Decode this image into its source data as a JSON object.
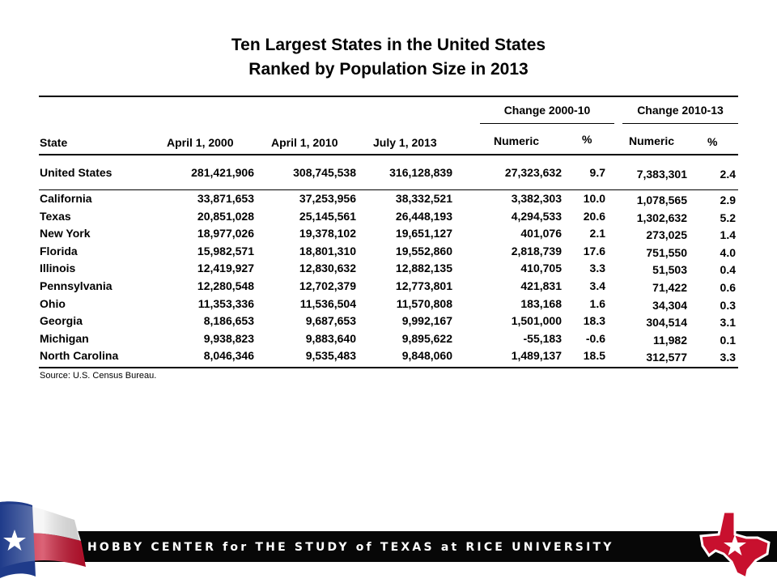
{
  "title": {
    "line1": "Ten Largest States in the United States",
    "line2": "Ranked by Population Size in 2013"
  },
  "headers": {
    "group_2000_10": "Change  2000-10",
    "group_2010_13": "Change  2010-13",
    "state": "State",
    "april_2000": "April 1,  2000",
    "april_2010": "April 1,  2010",
    "july_2013": "July  1,  2013",
    "numeric_1": "Numeric",
    "pct_1": "%",
    "numeric_2": "Numeric",
    "pct_2": "%"
  },
  "us_row": {
    "state": "United  States",
    "april_2000": "281,421,906",
    "april_2010": "308,745,538",
    "july_2013": "316,128,839",
    "num_00_10": "27,323,632",
    "pct_00_10": "9.7",
    "num_10_13": "7,383,301",
    "pct_10_13": "2.4"
  },
  "rows": [
    {
      "state": "California",
      "april_2000": "33,871,653",
      "april_2010": "37,253,956",
      "july_2013": "38,332,521",
      "num_00_10": "3,382,303",
      "pct_00_10": "10.0",
      "num_10_13": "1,078,565",
      "pct_10_13": "2.9"
    },
    {
      "state": "Texas",
      "april_2000": "20,851,028",
      "april_2010": "25,145,561",
      "july_2013": "26,448,193",
      "num_00_10": "4,294,533",
      "pct_00_10": "20.6",
      "num_10_13": "1,302,632",
      "pct_10_13": "5.2"
    },
    {
      "state": "New York",
      "april_2000": "18,977,026",
      "april_2010": "19,378,102",
      "july_2013": "19,651,127",
      "num_00_10": "401,076",
      "pct_00_10": "2.1",
      "num_10_13": "273,025",
      "pct_10_13": "1.4"
    },
    {
      "state": "Florida",
      "april_2000": "15,982,571",
      "april_2010": "18,801,310",
      "july_2013": "19,552,860",
      "num_00_10": "2,818,739",
      "pct_00_10": "17.6",
      "num_10_13": "751,550",
      "pct_10_13": "4.0"
    },
    {
      "state": "Illinois",
      "april_2000": "12,419,927",
      "april_2010": "12,830,632",
      "july_2013": "12,882,135",
      "num_00_10": "410,705",
      "pct_00_10": "3.3",
      "num_10_13": "51,503",
      "pct_10_13": "0.4"
    },
    {
      "state": "Pennsylvania",
      "april_2000": "12,280,548",
      "april_2010": "12,702,379",
      "july_2013": "12,773,801",
      "num_00_10": "421,831",
      "pct_00_10": "3.4",
      "num_10_13": "71,422",
      "pct_10_13": "0.6"
    },
    {
      "state": "Ohio",
      "april_2000": "11,353,336",
      "april_2010": "11,536,504",
      "july_2013": "11,570,808",
      "num_00_10": "183,168",
      "pct_00_10": "1.6",
      "num_10_13": "34,304",
      "pct_10_13": "0.3"
    },
    {
      "state": "Georgia",
      "april_2000": "8,186,653",
      "april_2010": "9,687,653",
      "july_2013": "9,992,167",
      "num_00_10": "1,501,000",
      "pct_00_10": "18.3",
      "num_10_13": "304,514",
      "pct_10_13": "3.1"
    },
    {
      "state": "Michigan",
      "april_2000": "9,938,823",
      "april_2010": "9,883,640",
      "july_2013": "9,895,622",
      "num_00_10": "-55,183",
      "pct_00_10": "-0.6",
      "num_10_13": "11,982",
      "pct_10_13": "0.1"
    },
    {
      "state": "North Carolina",
      "april_2000": "8,046,346",
      "april_2010": "9,535,483",
      "july_2013": "9,848,060",
      "num_00_10": "1,489,137",
      "pct_00_10": "18.5",
      "num_10_13": "312,577",
      "pct_10_13": "3.3"
    }
  ],
  "source": "Source: U.S. Census Bureau.",
  "footer": {
    "banner_text": "HOBBY CENTER for THE STUDY of TEXAS at RICE UNIVERSITY",
    "flag_icon": "texas-flag-icon",
    "logo_icon": "texas-shape-star-icon",
    "banner_color": "#070707",
    "accent_red": "#c8102e"
  }
}
